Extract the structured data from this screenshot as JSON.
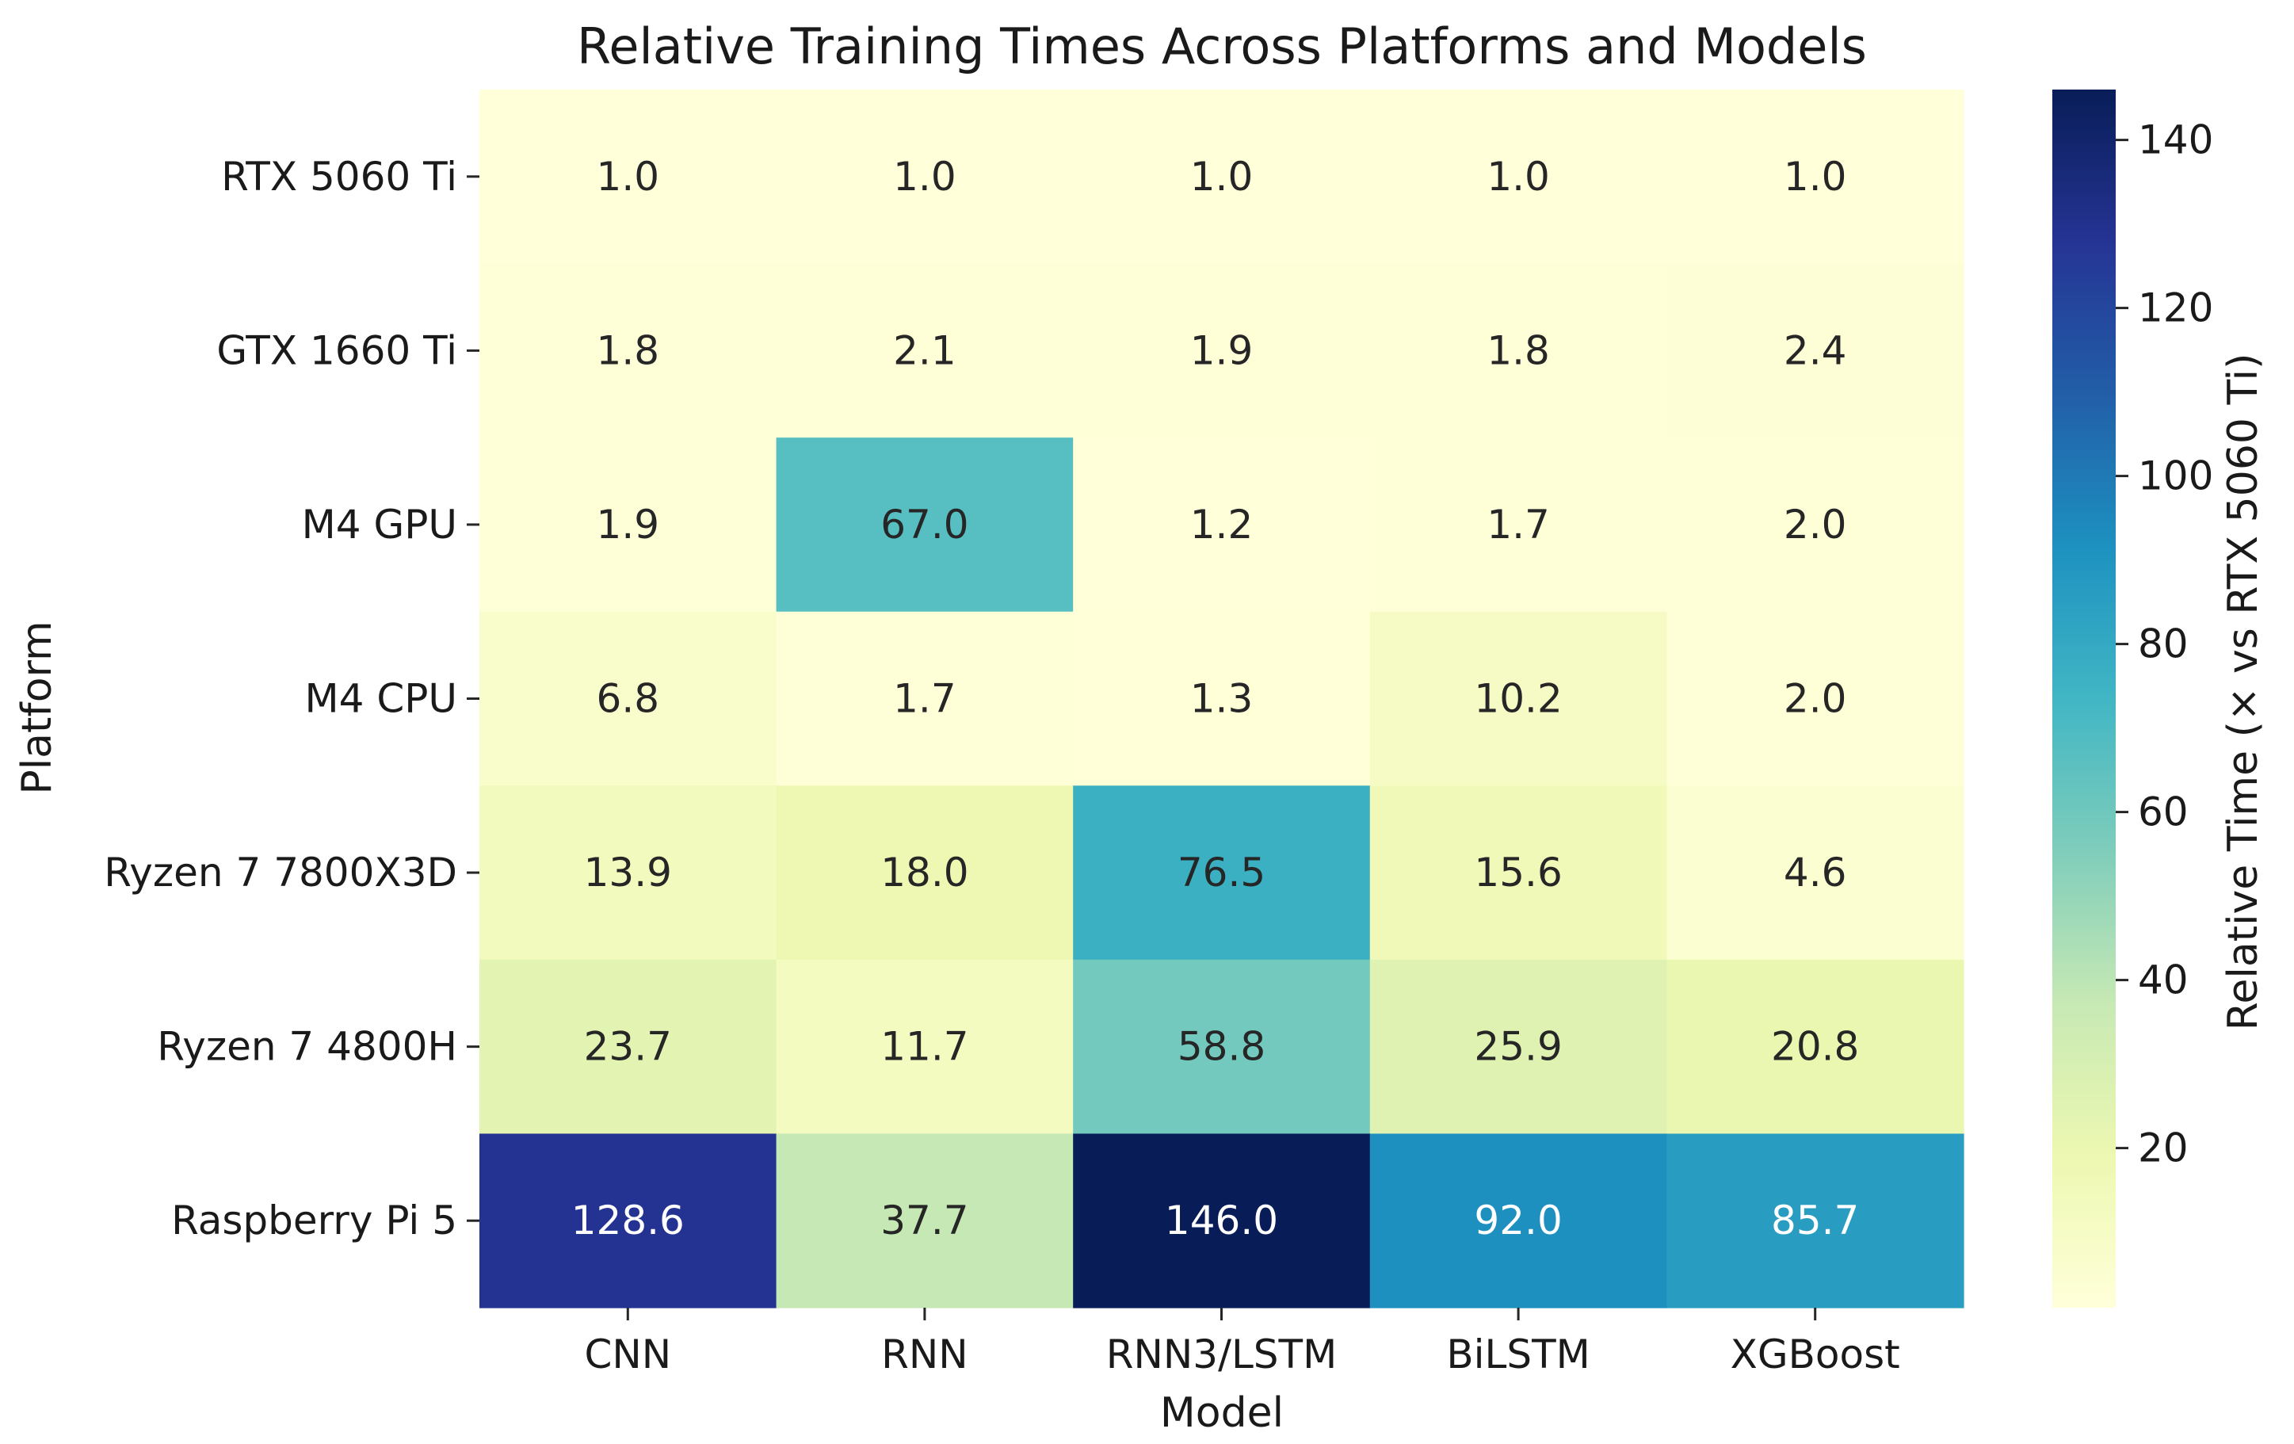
{
  "chart_data": {
    "type": "heatmap",
    "title": "Relative Training Times Across Platforms and Models",
    "xlabel": "Model",
    "ylabel": "Platform",
    "x_categories": [
      "CNN",
      "RNN",
      "RNN3/LSTM",
      "BiLSTM",
      "XGBoost"
    ],
    "y_categories": [
      "RTX 5060 Ti",
      "GTX 1660 Ti",
      "M4 GPU",
      "M4 CPU",
      "Ryzen 7 7800X3D",
      "Ryzen 7 4800H",
      "Raspberry Pi 5"
    ],
    "values": [
      [
        1.0,
        1.0,
        1.0,
        1.0,
        1.0
      ],
      [
        1.8,
        2.1,
        1.9,
        1.8,
        2.4
      ],
      [
        1.9,
        67.0,
        1.2,
        1.7,
        2.0
      ],
      [
        6.8,
        1.7,
        1.3,
        10.2,
        2.0
      ],
      [
        13.9,
        18.0,
        76.5,
        15.6,
        4.6
      ],
      [
        23.7,
        11.7,
        58.8,
        25.9,
        20.8
      ],
      [
        128.6,
        37.7,
        146.0,
        92.0,
        85.7
      ]
    ],
    "value_labels": [
      [
        "1.0",
        "1.0",
        "1.0",
        "1.0",
        "1.0"
      ],
      [
        "1.8",
        "2.1",
        "1.9",
        "1.8",
        "2.4"
      ],
      [
        "1.9",
        "67.0",
        "1.2",
        "1.7",
        "2.0"
      ],
      [
        "6.8",
        "1.7",
        "1.3",
        "10.2",
        "2.0"
      ],
      [
        "13.9",
        "18.0",
        "76.5",
        "15.6",
        "4.6"
      ],
      [
        "23.7",
        "11.7",
        "58.8",
        "25.9",
        "20.8"
      ],
      [
        "128.6",
        "37.7",
        "146.0",
        "92.0",
        "85.7"
      ]
    ],
    "colormap": "YlGnBu",
    "colorbar": {
      "label": "Relative Time (× vs RTX 5060 Ti)",
      "range": [
        1.0,
        146.0
      ],
      "ticks": [
        20,
        40,
        60,
        80,
        100,
        120,
        140
      ],
      "tick_labels": [
        "20",
        "40",
        "60",
        "80",
        "100",
        "120",
        "140"
      ]
    },
    "grid": false
  }
}
